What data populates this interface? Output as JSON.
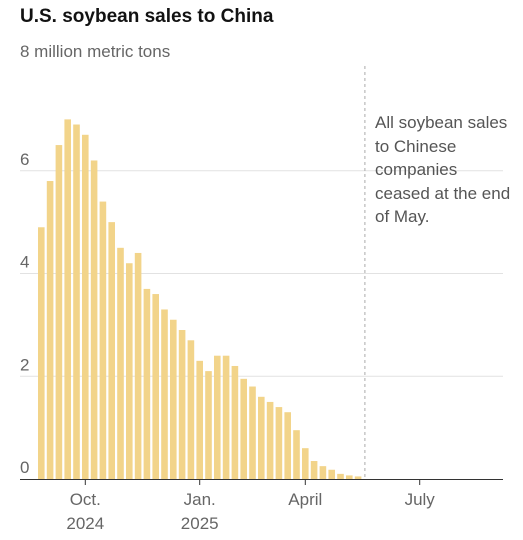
{
  "chart_data": {
    "type": "bar",
    "title": "U.S. soybean sales to China",
    "subtitle": "8 million metric tons",
    "xlabel": "",
    "ylabel": "",
    "ylim": [
      0,
      8
    ],
    "yticks": [
      "0",
      "2",
      "4",
      "6"
    ],
    "xticks": [
      {
        "line1": "Oct.",
        "line2": "2024",
        "week": 5
      },
      {
        "line1": "Jan.",
        "line2": "2025",
        "week": 18
      },
      {
        "line1": "April",
        "line2": "",
        "week": 30
      },
      {
        "line1": "July",
        "line2": "",
        "week": 43
      }
    ],
    "weeks_total": 52,
    "color": "#f2d48a",
    "grid": true,
    "values": [
      4.9,
      5.8,
      6.5,
      7.0,
      6.9,
      6.7,
      6.2,
      5.4,
      5.0,
      4.5,
      4.2,
      4.4,
      3.7,
      3.6,
      3.3,
      3.1,
      2.9,
      2.7,
      2.3,
      2.1,
      2.4,
      2.4,
      2.2,
      1.95,
      1.8,
      1.6,
      1.5,
      1.4,
      1.3,
      0.95,
      0.6,
      0.35,
      0.25,
      0.18,
      0.1,
      0.07,
      0.05
    ],
    "marker": {
      "week": 37,
      "label": "All soybean sales to Chinese companies ceased at the end of May."
    }
  }
}
